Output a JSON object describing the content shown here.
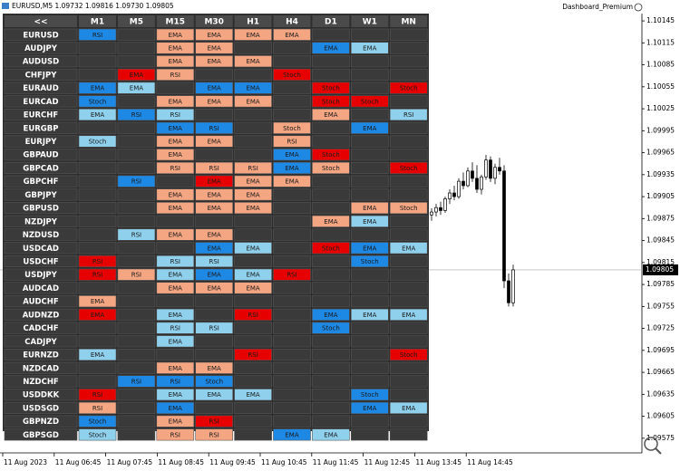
{
  "window": {
    "title": "EURUSD,M5 1.09732 1.09816 1.09730 1.09805",
    "indicator": "Dashboard_Premium"
  },
  "dashboard": {
    "back": "<<",
    "timeframes": [
      "M1",
      "M5",
      "M15",
      "M30",
      "H1",
      "H4",
      "D1",
      "W1",
      "MN"
    ],
    "rows": [
      {
        "pair": "EURUSD",
        "cells": [
          {
            "text": "RSI",
            "color": "#1e88e5"
          },
          null,
          {
            "text": "EMA",
            "color": "#f4a582"
          },
          {
            "text": "EMA",
            "color": "#f4a582"
          },
          {
            "text": "EMA",
            "color": "#f4a582"
          },
          {
            "text": "EMA",
            "color": "#f4a582"
          },
          null,
          null,
          null
        ]
      },
      {
        "pair": "AUDJPY",
        "cells": [
          null,
          null,
          {
            "text": "EMA",
            "color": "#f4a582"
          },
          {
            "text": "EMA",
            "color": "#f4a582"
          },
          null,
          null,
          {
            "text": "EMA",
            "color": "#1e88e5"
          },
          {
            "text": "EMA",
            "color": "#8fd0ec"
          },
          null
        ]
      },
      {
        "pair": "AUDUSD",
        "cells": [
          null,
          null,
          {
            "text": "EMA",
            "color": "#f4a582"
          },
          {
            "text": "EMA",
            "color": "#f4a582"
          },
          {
            "text": "EMA",
            "color": "#f4a582"
          },
          null,
          null,
          null,
          null
        ]
      },
      {
        "pair": "CHFJPY",
        "cells": [
          null,
          {
            "text": "EMA",
            "color": "#e60000"
          },
          {
            "text": "RSI",
            "color": "#f4a582"
          },
          null,
          null,
          {
            "text": "Stoch",
            "color": "#e60000"
          },
          null,
          null,
          null
        ]
      },
      {
        "pair": "EURAUD",
        "cells": [
          {
            "text": "EMA",
            "color": "#1e88e5"
          },
          {
            "text": "EMA",
            "color": "#8fd0ec"
          },
          null,
          {
            "text": "EMA",
            "color": "#1e88e5"
          },
          {
            "text": "EMA",
            "color": "#1e88e5"
          },
          null,
          {
            "text": "Stoch",
            "color": "#e60000"
          },
          null,
          {
            "text": "Stoch",
            "color": "#e60000"
          }
        ]
      },
      {
        "pair": "EURCAD",
        "cells": [
          {
            "text": "Stoch",
            "color": "#1e88e5"
          },
          null,
          {
            "text": "EMA",
            "color": "#f4a582"
          },
          {
            "text": "EMA",
            "color": "#f4a582"
          },
          {
            "text": "EMA",
            "color": "#f4a582"
          },
          null,
          {
            "text": "Stoch",
            "color": "#e60000"
          },
          {
            "text": "Stoch",
            "color": "#e60000"
          },
          null
        ]
      },
      {
        "pair": "EURCHF",
        "cells": [
          {
            "text": "EMA",
            "color": "#8fd0ec"
          },
          {
            "text": "RSI",
            "color": "#1e88e5"
          },
          {
            "text": "RSI",
            "color": "#8fd0ec"
          },
          null,
          null,
          null,
          {
            "text": "EMA",
            "color": "#f4a582"
          },
          null,
          {
            "text": "RSI",
            "color": "#8fd0ec"
          }
        ]
      },
      {
        "pair": "EURGBP",
        "cells": [
          null,
          null,
          {
            "text": "EMA",
            "color": "#1e88e5"
          },
          {
            "text": "RSI",
            "color": "#1e88e5"
          },
          null,
          {
            "text": "Stoch",
            "color": "#f4a582"
          },
          null,
          {
            "text": "EMA",
            "color": "#1e88e5"
          },
          null
        ]
      },
      {
        "pair": "EURJPY",
        "cells": [
          {
            "text": "Stoch",
            "color": "#8fd0ec"
          },
          null,
          {
            "text": "EMA",
            "color": "#f4a582"
          },
          {
            "text": "EMA",
            "color": "#f4a582"
          },
          null,
          {
            "text": "RSI",
            "color": "#f4a582"
          },
          null,
          null,
          null
        ]
      },
      {
        "pair": "GBPAUD",
        "cells": [
          null,
          null,
          {
            "text": "EMA",
            "color": "#f4a582"
          },
          null,
          null,
          {
            "text": "EMA",
            "color": "#1e88e5"
          },
          {
            "text": "Stoch",
            "color": "#e60000"
          },
          null,
          null
        ]
      },
      {
        "pair": "GBPCAD",
        "cells": [
          null,
          null,
          {
            "text": "RSI",
            "color": "#f4a582"
          },
          {
            "text": "RSI",
            "color": "#f4a582"
          },
          {
            "text": "RSI",
            "color": "#f4a582"
          },
          {
            "text": "EMA",
            "color": "#1e88e5"
          },
          {
            "text": "Stoch",
            "color": "#f4a582"
          },
          null,
          {
            "text": "Stoch",
            "color": "#e60000"
          }
        ]
      },
      {
        "pair": "GBPCHF",
        "cells": [
          null,
          {
            "text": "RSI",
            "color": "#1e88e5"
          },
          null,
          {
            "text": "EMA",
            "color": "#e60000"
          },
          {
            "text": "EMA",
            "color": "#f4a582"
          },
          {
            "text": "EMA",
            "color": "#f4a582"
          },
          null,
          null,
          null
        ]
      },
      {
        "pair": "GBPJPY",
        "cells": [
          null,
          null,
          {
            "text": "EMA",
            "color": "#f4a582"
          },
          {
            "text": "EMA",
            "color": "#f4a582"
          },
          {
            "text": "EMA",
            "color": "#f4a582"
          },
          null,
          null,
          null,
          null
        ]
      },
      {
        "pair": "GBPUSD",
        "cells": [
          null,
          null,
          {
            "text": "EMA",
            "color": "#f4a582"
          },
          {
            "text": "EMA",
            "color": "#f4a582"
          },
          {
            "text": "EMA",
            "color": "#f4a582"
          },
          null,
          null,
          {
            "text": "EMA",
            "color": "#f4a582"
          },
          {
            "text": "Stoch",
            "color": "#f4a582"
          }
        ]
      },
      {
        "pair": "NZDJPY",
        "cells": [
          null,
          null,
          null,
          null,
          null,
          null,
          {
            "text": "EMA",
            "color": "#f4a582"
          },
          {
            "text": "EMA",
            "color": "#8fd0ec"
          },
          null
        ]
      },
      {
        "pair": "NZDUSD",
        "cells": [
          null,
          {
            "text": "RSI",
            "color": "#8fd0ec"
          },
          {
            "text": "EMA",
            "color": "#f4a582"
          },
          {
            "text": "EMA",
            "color": "#f4a582"
          },
          null,
          null,
          null,
          null,
          null
        ]
      },
      {
        "pair": "USDCAD",
        "cells": [
          null,
          null,
          null,
          {
            "text": "EMA",
            "color": "#1e88e5"
          },
          {
            "text": "EMA",
            "color": "#8fd0ec"
          },
          null,
          {
            "text": "Stoch",
            "color": "#e60000"
          },
          {
            "text": "EMA",
            "color": "#1e88e5"
          },
          {
            "text": "EMA",
            "color": "#8fd0ec"
          }
        ]
      },
      {
        "pair": "USDCHF",
        "cells": [
          {
            "text": "RSI",
            "color": "#e60000"
          },
          null,
          {
            "text": "RSI",
            "color": "#8fd0ec"
          },
          {
            "text": "RSI",
            "color": "#8fd0ec"
          },
          null,
          null,
          null,
          {
            "text": "Stoch",
            "color": "#1e88e5"
          },
          null
        ]
      },
      {
        "pair": "USDJPY",
        "cells": [
          {
            "text": "RSI",
            "color": "#e60000"
          },
          {
            "text": "RSI",
            "color": "#f4a582"
          },
          {
            "text": "EMA",
            "color": "#8fd0ec"
          },
          {
            "text": "EMA",
            "color": "#1e88e5"
          },
          {
            "text": "EMA",
            "color": "#8fd0ec"
          },
          {
            "text": "RSI",
            "color": "#e60000"
          },
          null,
          null,
          null
        ]
      },
      {
        "pair": "AUDCAD",
        "cells": [
          null,
          null,
          {
            "text": "EMA",
            "color": "#f4a582"
          },
          {
            "text": "EMA",
            "color": "#f4a582"
          },
          {
            "text": "EMA",
            "color": "#f4a582"
          },
          null,
          null,
          null,
          null
        ]
      },
      {
        "pair": "AUDCHF",
        "cells": [
          {
            "text": "EMA",
            "color": "#f4a582"
          },
          null,
          null,
          null,
          null,
          null,
          null,
          null,
          null
        ]
      },
      {
        "pair": "AUDNZD",
        "cells": [
          {
            "text": "EMA",
            "color": "#e60000"
          },
          null,
          {
            "text": "EMA",
            "color": "#8fd0ec"
          },
          null,
          {
            "text": "RSI",
            "color": "#e60000"
          },
          null,
          {
            "text": "EMA",
            "color": "#1e88e5"
          },
          {
            "text": "EMA",
            "color": "#8fd0ec"
          },
          {
            "text": "EMA",
            "color": "#8fd0ec"
          }
        ]
      },
      {
        "pair": "CADCHF",
        "cells": [
          null,
          null,
          {
            "text": "RSI",
            "color": "#8fd0ec"
          },
          {
            "text": "RSI",
            "color": "#8fd0ec"
          },
          null,
          null,
          {
            "text": "Stoch",
            "color": "#1e88e5"
          },
          null,
          null
        ]
      },
      {
        "pair": "CADJPY",
        "cells": [
          null,
          null,
          {
            "text": "EMA",
            "color": "#8fd0ec"
          },
          null,
          null,
          null,
          null,
          null,
          null
        ]
      },
      {
        "pair": "EURNZD",
        "cells": [
          {
            "text": "EMA",
            "color": "#8fd0ec"
          },
          null,
          null,
          null,
          {
            "text": "RSI",
            "color": "#e60000"
          },
          null,
          null,
          null,
          {
            "text": "Stoch",
            "color": "#e60000"
          }
        ]
      },
      {
        "pair": "NZDCAD",
        "cells": [
          null,
          null,
          {
            "text": "EMA",
            "color": "#f4a582"
          },
          {
            "text": "EMA",
            "color": "#f4a582"
          },
          null,
          null,
          null,
          null,
          null
        ]
      },
      {
        "pair": "NZDCHF",
        "cells": [
          null,
          {
            "text": "RSI",
            "color": "#1e88e5"
          },
          {
            "text": "RSI",
            "color": "#1e88e5"
          },
          {
            "text": "Stoch",
            "color": "#1e88e5"
          },
          null,
          null,
          null,
          null,
          null
        ]
      },
      {
        "pair": "USDDKK",
        "cells": [
          {
            "text": "RSI",
            "color": "#e60000"
          },
          null,
          {
            "text": "EMA",
            "color": "#8fd0ec"
          },
          {
            "text": "EMA",
            "color": "#8fd0ec"
          },
          {
            "text": "EMA",
            "color": "#8fd0ec"
          },
          null,
          null,
          {
            "text": "Stoch",
            "color": "#1e88e5"
          },
          null
        ]
      },
      {
        "pair": "USDSGD",
        "cells": [
          {
            "text": "RSI",
            "color": "#f4a582"
          },
          null,
          {
            "text": "EMA",
            "color": "#1e88e5"
          },
          null,
          null,
          null,
          null,
          {
            "text": "EMA",
            "color": "#1e88e5"
          },
          {
            "text": "EMA",
            "color": "#8fd0ec"
          }
        ]
      },
      {
        "pair": "GBPNZD",
        "cells": [
          {
            "text": "Stoch",
            "color": "#1e88e5"
          },
          null,
          {
            "text": "EMA",
            "color": "#f4a582"
          },
          {
            "text": "RSI",
            "color": "#e60000"
          },
          null,
          null,
          null,
          null,
          null
        ]
      },
      {
        "pair": "GBPSGD",
        "cells": [
          {
            "text": "Stoch",
            "color": "#8fd0ec"
          },
          null,
          {
            "text": "RSI",
            "color": "#f4a582"
          },
          {
            "text": "RSI",
            "color": "#f4a582"
          },
          null,
          {
            "text": "EMA",
            "color": "#1e88e5"
          },
          {
            "text": "EMA",
            "color": "#8fd0ec"
          },
          null,
          null
        ]
      }
    ]
  },
  "price_chart": {
    "type": "candlestick",
    "ylim": [
      1.09555,
      1.10155
    ],
    "yticks": [
      1.10145,
      1.10115,
      1.10085,
      1.10055,
      1.10025,
      1.09995,
      1.09965,
      1.09935,
      1.09905,
      1.09875,
      1.09845,
      1.09815,
      1.09785,
      1.09755,
      1.09725,
      1.09695,
      1.09665,
      1.09635,
      1.09605,
      1.09575
    ],
    "current_price": 1.09805,
    "time_labels": [
      "11 Aug 2023",
      "11 Aug 06:45",
      "11 Aug 07:45",
      "11 Aug 08:45",
      "11 Aug 09:45",
      "11 Aug 10:45",
      "11 Aug 11:45",
      "11 Aug 12:45",
      "11 Aug 13:45",
      "11 Aug 14:45"
    ],
    "candles": [
      {
        "o": 1.0988,
        "h": 1.09889,
        "l": 1.09872,
        "c": 1.09884
      },
      {
        "o": 1.09884,
        "h": 1.09895,
        "l": 1.09878,
        "c": 1.0989
      },
      {
        "o": 1.0989,
        "h": 1.09898,
        "l": 1.0988,
        "c": 1.09886
      },
      {
        "o": 1.09886,
        "h": 1.09905,
        "l": 1.09883,
        "c": 1.09902
      },
      {
        "o": 1.09902,
        "h": 1.09915,
        "l": 1.09895,
        "c": 1.0991
      },
      {
        "o": 1.0991,
        "h": 1.0992,
        "l": 1.099,
        "c": 1.09905
      },
      {
        "o": 1.09905,
        "h": 1.0993,
        "l": 1.09902,
        "c": 1.09926
      },
      {
        "o": 1.09926,
        "h": 1.09938,
        "l": 1.09915,
        "c": 1.0992
      },
      {
        "o": 1.0992,
        "h": 1.09945,
        "l": 1.09918,
        "c": 1.0994
      },
      {
        "o": 1.0994,
        "h": 1.09952,
        "l": 1.09925,
        "c": 1.0993
      },
      {
        "o": 1.0993,
        "h": 1.09948,
        "l": 1.0991,
        "c": 1.09915
      },
      {
        "o": 1.09915,
        "h": 1.09935,
        "l": 1.09908,
        "c": 1.09932
      },
      {
        "o": 1.09932,
        "h": 1.09962,
        "l": 1.09928,
        "c": 1.09955
      },
      {
        "o": 1.09955,
        "h": 1.0996,
        "l": 1.09925,
        "c": 1.0993
      },
      {
        "o": 1.0993,
        "h": 1.0995,
        "l": 1.09922,
        "c": 1.09945
      },
      {
        "o": 1.09945,
        "h": 1.09958,
        "l": 1.09935,
        "c": 1.0994
      },
      {
        "o": 1.0994,
        "h": 1.09948,
        "l": 1.0978,
        "c": 1.0979
      },
      {
        "o": 1.0979,
        "h": 1.098,
        "l": 1.09755,
        "c": 1.0976
      },
      {
        "o": 1.0976,
        "h": 1.09812,
        "l": 1.09755,
        "c": 1.09805
      }
    ]
  }
}
